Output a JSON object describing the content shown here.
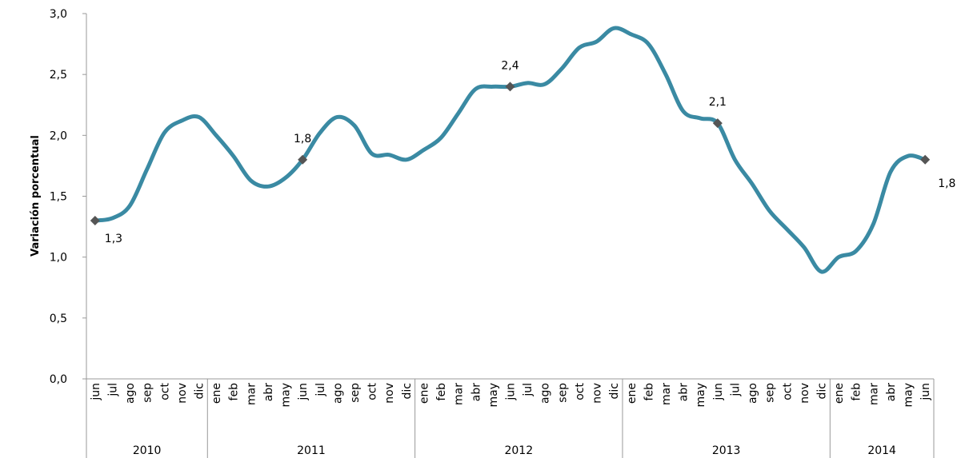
{
  "chart_data": {
    "type": "line",
    "y_axis_label": "Variación porcentual",
    "category_groups": [
      {
        "label": "2010",
        "categories": [
          "jun",
          "jul",
          "ago",
          "sep",
          "oct",
          "nov",
          "dic"
        ]
      },
      {
        "label": "2011",
        "categories": [
          "ene",
          "feb",
          "mar",
          "abr",
          "may",
          "jun",
          "jul",
          "ago",
          "sep",
          "oct",
          "nov",
          "dic"
        ]
      },
      {
        "label": "2012",
        "categories": [
          "ene",
          "feb",
          "mar",
          "abr",
          "may",
          "jun",
          "jul",
          "ago",
          "sep",
          "oct",
          "nov",
          "dic"
        ]
      },
      {
        "label": "2013",
        "categories": [
          "ene",
          "feb",
          "mar",
          "abr",
          "may",
          "jun",
          "jul",
          "ago",
          "sep",
          "oct",
          "nov",
          "dic"
        ]
      },
      {
        "label": "2014",
        "categories": [
          "ene",
          "feb",
          "mar",
          "abr",
          "may",
          "jun"
        ]
      }
    ],
    "values": [
      1.3,
      1.32,
      1.42,
      1.72,
      2.02,
      2.12,
      2.15,
      2.0,
      1.83,
      1.63,
      1.58,
      1.65,
      1.8,
      2.02,
      2.15,
      2.08,
      1.85,
      1.84,
      1.8,
      1.88,
      1.98,
      2.18,
      2.38,
      2.4,
      2.4,
      2.43,
      2.42,
      2.55,
      2.72,
      2.77,
      2.88,
      2.83,
      2.75,
      2.5,
      2.2,
      2.14,
      2.1,
      1.8,
      1.6,
      1.38,
      1.23,
      1.08,
      0.88,
      1.0,
      1.05,
      1.27,
      1.7,
      1.83,
      1.8
    ],
    "value_labels": [
      "1,3",
      null,
      null,
      null,
      null,
      null,
      null,
      null,
      null,
      null,
      null,
      null,
      "1,8",
      null,
      null,
      null,
      null,
      null,
      null,
      null,
      null,
      null,
      null,
      null,
      "2,4",
      null,
      null,
      null,
      null,
      null,
      null,
      null,
      null,
      null,
      null,
      null,
      "2,1",
      null,
      null,
      null,
      null,
      null,
      null,
      null,
      null,
      null,
      null,
      null,
      "1,8"
    ],
    "color": "#3a8aa3",
    "marker_color": "#555555",
    "ylim": [
      0,
      3
    ],
    "yticks": [
      {
        "value": 0,
        "label": "0,0"
      },
      {
        "value": 0.5,
        "label": "0,5"
      },
      {
        "value": 1,
        "label": "1,0"
      },
      {
        "value": 1.5,
        "label": "1,5"
      },
      {
        "value": 2,
        "label": "2,0"
      },
      {
        "value": 2.5,
        "label": "2,5"
      },
      {
        "value": 3,
        "label": "3,0"
      }
    ],
    "grid": false
  }
}
